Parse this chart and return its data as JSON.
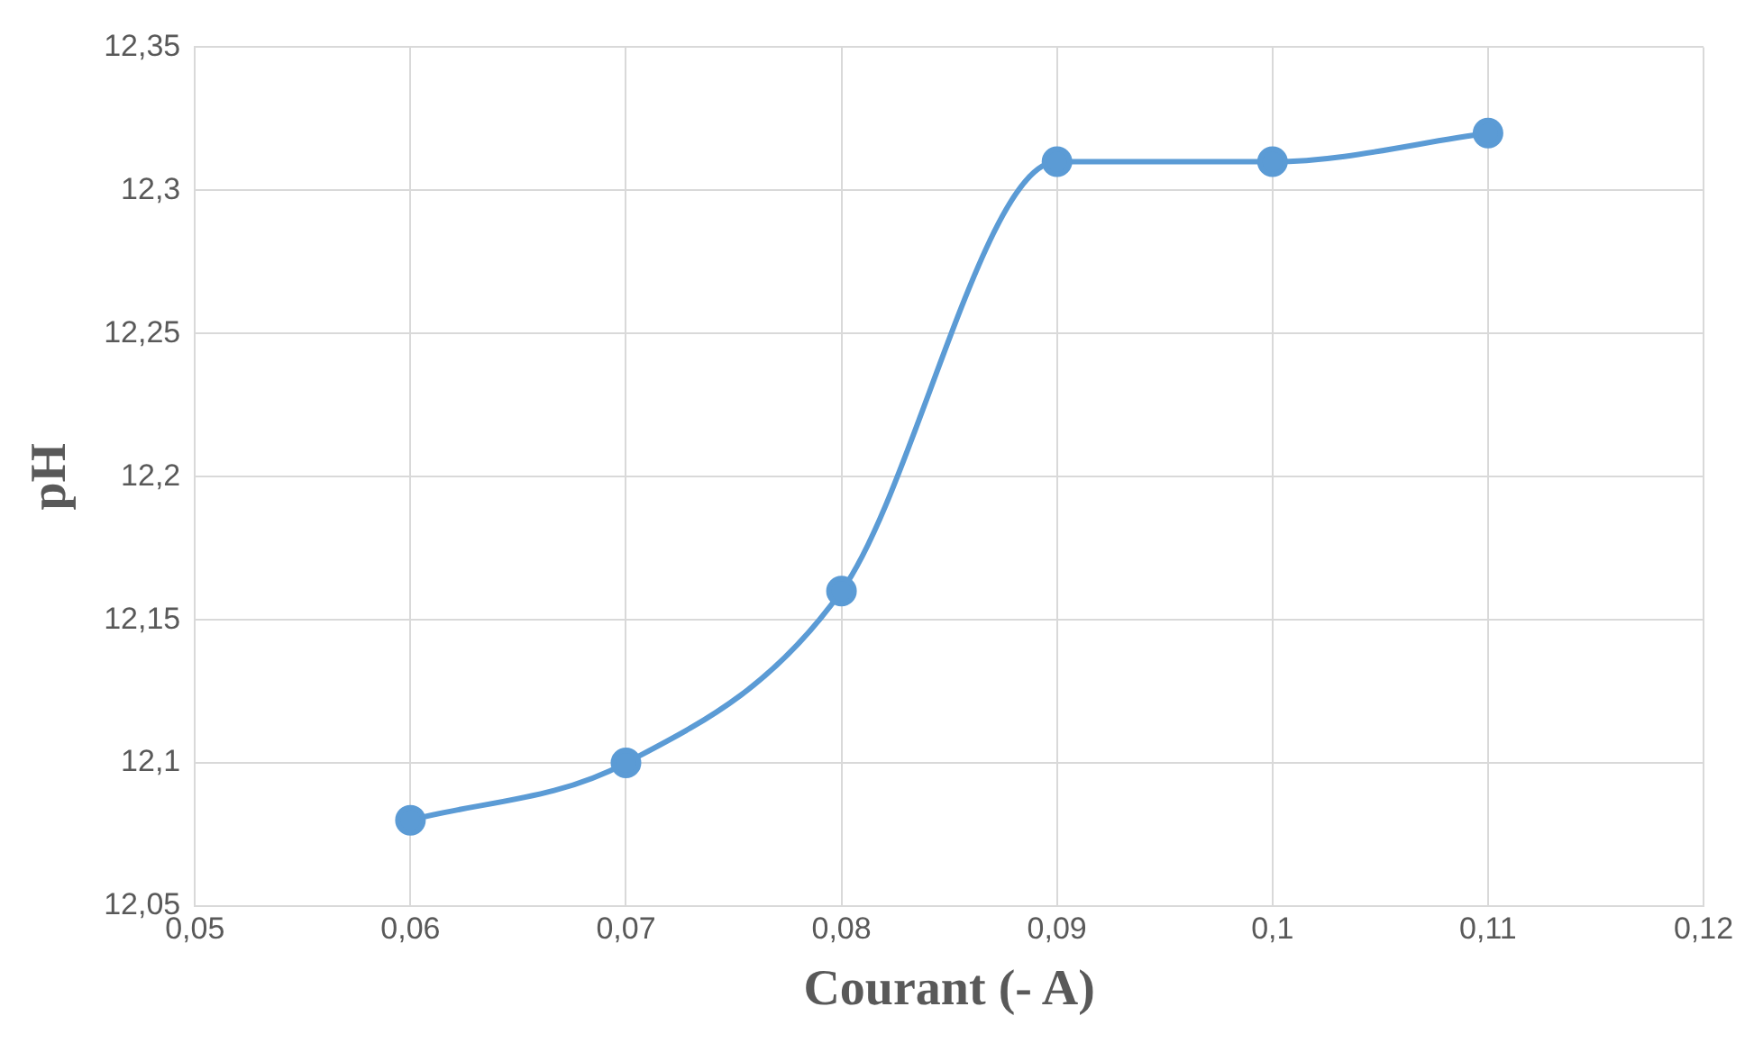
{
  "chart_data": {
    "type": "line",
    "xlabel": "Courant (- A)",
    "ylabel": "pH",
    "x": [
      0.06,
      0.07,
      0.08,
      0.09,
      0.1,
      0.11
    ],
    "series": [
      {
        "color": "#5b9bd5",
        "values": [
          12.08,
          12.1,
          12.16,
          12.31,
          12.31,
          12.32
        ]
      }
    ],
    "xlim": [
      0.05,
      0.12
    ],
    "xticks": [
      {
        "value": 0.05,
        "label": "0,05"
      },
      {
        "value": 0.06,
        "label": "0,06"
      },
      {
        "value": 0.07,
        "label": "0,07"
      },
      {
        "value": 0.08,
        "label": "0,08"
      },
      {
        "value": 0.09,
        "label": "0,09"
      },
      {
        "value": 0.1,
        "label": "0,1"
      },
      {
        "value": 0.11,
        "label": "0,11"
      },
      {
        "value": 0.12,
        "label": "0,12"
      }
    ],
    "ylim": [
      12.05,
      12.35
    ],
    "yticks": [
      {
        "value": 12.05,
        "label": "12,05"
      },
      {
        "value": 12.1,
        "label": "12,1"
      },
      {
        "value": 12.15,
        "label": "12,15"
      },
      {
        "value": 12.2,
        "label": "12,2"
      },
      {
        "value": 12.25,
        "label": "12,25"
      },
      {
        "value": 12.3,
        "label": "12,3"
      },
      {
        "value": 12.35,
        "label": "12,35"
      }
    ],
    "grid": true,
    "legend": false,
    "marker": "circle",
    "line_style": "solid"
  }
}
